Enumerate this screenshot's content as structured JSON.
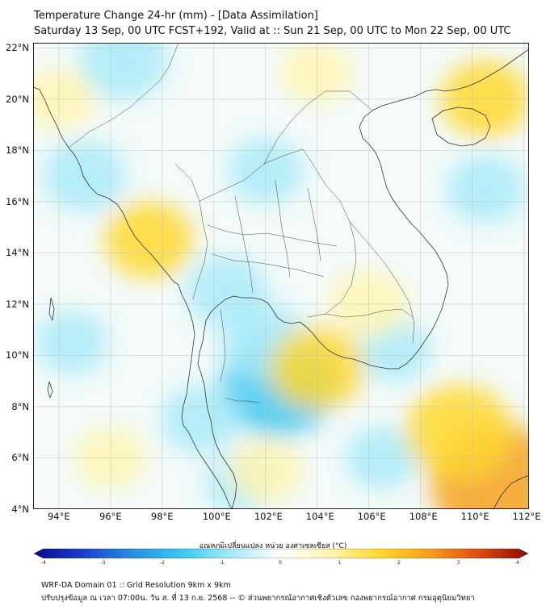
{
  "title": {
    "line1": "Temperature Change 24-hr (mm) - [Data Assimilation]",
    "line2": "Saturday 13 Sep, 00 UTC FCST+192, Valid at :: Sun 21 Sep, 00 UTC to Mon 22 Sep, 00 UTC"
  },
  "map_data": {
    "type": "heatmap",
    "lat_range": [
      4,
      22.2
    ],
    "lon_range": [
      93,
      112.2
    ],
    "lat_ticks": [
      "22°N",
      "20°N",
      "18°N",
      "16°N",
      "14°N",
      "12°N",
      "10°N",
      "8°N",
      "6°N",
      "4°N"
    ],
    "lon_ticks": [
      "94°E",
      "96°E",
      "98°E",
      "100°E",
      "102°E",
      "104°E",
      "106°E",
      "108°E",
      "110°E",
      "112°E"
    ],
    "grid": true,
    "anomalies": [
      {
        "lon": 102.5,
        "lat": 8.8,
        "value": -2.0
      },
      {
        "lon": 102.0,
        "lat": 10.5,
        "value": -1.2
      },
      {
        "lon": 100.5,
        "lat": 12.5,
        "value": -1.0
      },
      {
        "lon": 96.5,
        "lat": 21.5,
        "value": -1.2
      },
      {
        "lon": 95.0,
        "lat": 17.0,
        "value": -1.0
      },
      {
        "lon": 110.5,
        "lat": 16.5,
        "value": -0.9
      },
      {
        "lon": 102.0,
        "lat": 17.2,
        "value": -0.8
      },
      {
        "lon": 107.0,
        "lat": 10.2,
        "value": -0.7
      },
      {
        "lon": 99.5,
        "lat": 7.5,
        "value": -0.9
      },
      {
        "lon": 94.5,
        "lat": 10.5,
        "value": -0.7
      },
      {
        "lon": 106.5,
        "lat": 6.0,
        "value": -0.7
      },
      {
        "lon": 101.0,
        "lat": 5.0,
        "value": -0.6
      },
      {
        "lon": 97.5,
        "lat": 14.5,
        "value": 1.2
      },
      {
        "lon": 104.0,
        "lat": 9.5,
        "value": 1.4
      },
      {
        "lon": 111.0,
        "lat": 5.0,
        "value": 2.6
      },
      {
        "lon": 109.5,
        "lat": 7.0,
        "value": 1.8
      },
      {
        "lon": 110.5,
        "lat": 20.0,
        "value": 1.2
      },
      {
        "lon": 106.0,
        "lat": 12.0,
        "value": 0.9
      },
      {
        "lon": 94.0,
        "lat": 20.0,
        "value": 0.7
      },
      {
        "lon": 104.0,
        "lat": 21.0,
        "value": 0.7
      },
      {
        "lon": 102.0,
        "lat": 5.5,
        "value": 0.8
      },
      {
        "lon": 96.0,
        "lat": 6.0,
        "value": 0.7
      }
    ]
  },
  "colorbar": {
    "title": "อุณหภูมิเปลี่ยนแปลง หน่วย องศาเซลเซียส (°C)",
    "min": -4,
    "max": 4,
    "ticks": [
      "-4",
      "-3",
      "-2",
      "-1",
      "0",
      "1",
      "2",
      "3",
      "4"
    ],
    "colors": [
      "#08088a",
      "#1c3fd0",
      "#2a8ee0",
      "#3cc8f0",
      "#a8eaf8",
      "#ffffff",
      "#fff4b0",
      "#ffd830",
      "#f7a020",
      "#e04a10",
      "#8a0808"
    ]
  },
  "footer": {
    "line1": "WRF-DA Domain 01 :: Grid Resolution 9km x 9km",
    "line2": "ปรับปรุงข้อมูล ณ เวลา 07:00น. วัน ส. ที่ 13 ก.ย. 2568 -- © ส่วนพยากรณ์อากาศเชิงตัวเลข กองพยากรณ์อากาศ กรมอุตุนิยมวิทยา"
  }
}
